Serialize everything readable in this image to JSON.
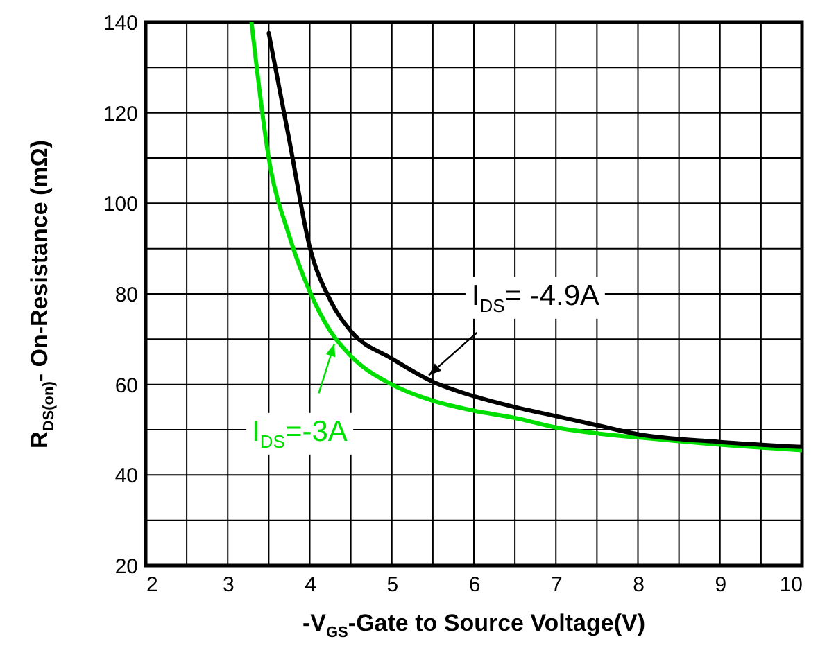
{
  "chart_data": {
    "type": "line",
    "xlabel": "-V$_{GS}$-Gate to Source Voltage(V)",
    "ylabel": "R$_{DS(on)}$- On-Resistance (mΩ)",
    "xlim": [
      2,
      10
    ],
    "ylim": [
      20,
      140
    ],
    "xticks": [
      2,
      {
        "value": 2.5,
        "label": null
      },
      3,
      {
        "value": 3.5,
        "label": null
      },
      4,
      {
        "value": 4.5,
        "label": null
      },
      5,
      {
        "value": 5.5,
        "label": null
      },
      6,
      {
        "value": 6.5,
        "label": null
      },
      7,
      {
        "value": 7.5,
        "label": null
      },
      8,
      {
        "value": 8.5,
        "label": null
      },
      9,
      {
        "value": 9.5,
        "label": null
      },
      10
    ],
    "yticks": [
      20,
      {
        "value": 30,
        "label": null
      },
      40,
      {
        "value": 50,
        "label": null
      },
      60,
      {
        "value": 70,
        "label": null
      },
      80,
      {
        "value": 90,
        "label": null
      },
      100,
      {
        "value": 110,
        "label": null
      },
      120,
      {
        "value": 130,
        "label": null
      },
      140
    ],
    "grid": true,
    "marker": "none",
    "line_style": "solid",
    "series": [
      {
        "color": "#000000",
        "x": [
          3.5,
          3.75,
          4,
          4.25,
          4.5,
          5,
          5.5,
          6,
          6.5,
          7,
          7.5,
          8,
          9,
          10
        ],
        "values": [
          137.6,
          114,
          90.3,
          78.6,
          71.8,
          65.7,
          60.6,
          57.4,
          55,
          53,
          51,
          49,
          47.3,
          46.2
        ]
      },
      {
        "color": "#00e000",
        "x": [
          3.29,
          3.5,
          3.75,
          4,
          4.25,
          4.5,
          5,
          5.5,
          6,
          6.5,
          7,
          7.5,
          8,
          9,
          10
        ],
        "values": [
          140,
          110,
          92.8,
          80.5,
          71.8,
          66.3,
          60,
          56.4,
          54.2,
          52.6,
          50.5,
          49.2,
          48.3,
          46.7,
          45.5
        ]
      }
    ],
    "annotations": [
      {
        "text": "I$_{DS}$= -4.9A",
        "x": 5.45,
        "y": 62
      },
      {
        "text": "I$_{DS}$=-3A",
        "x": 4.3,
        "y": 69
      }
    ]
  }
}
